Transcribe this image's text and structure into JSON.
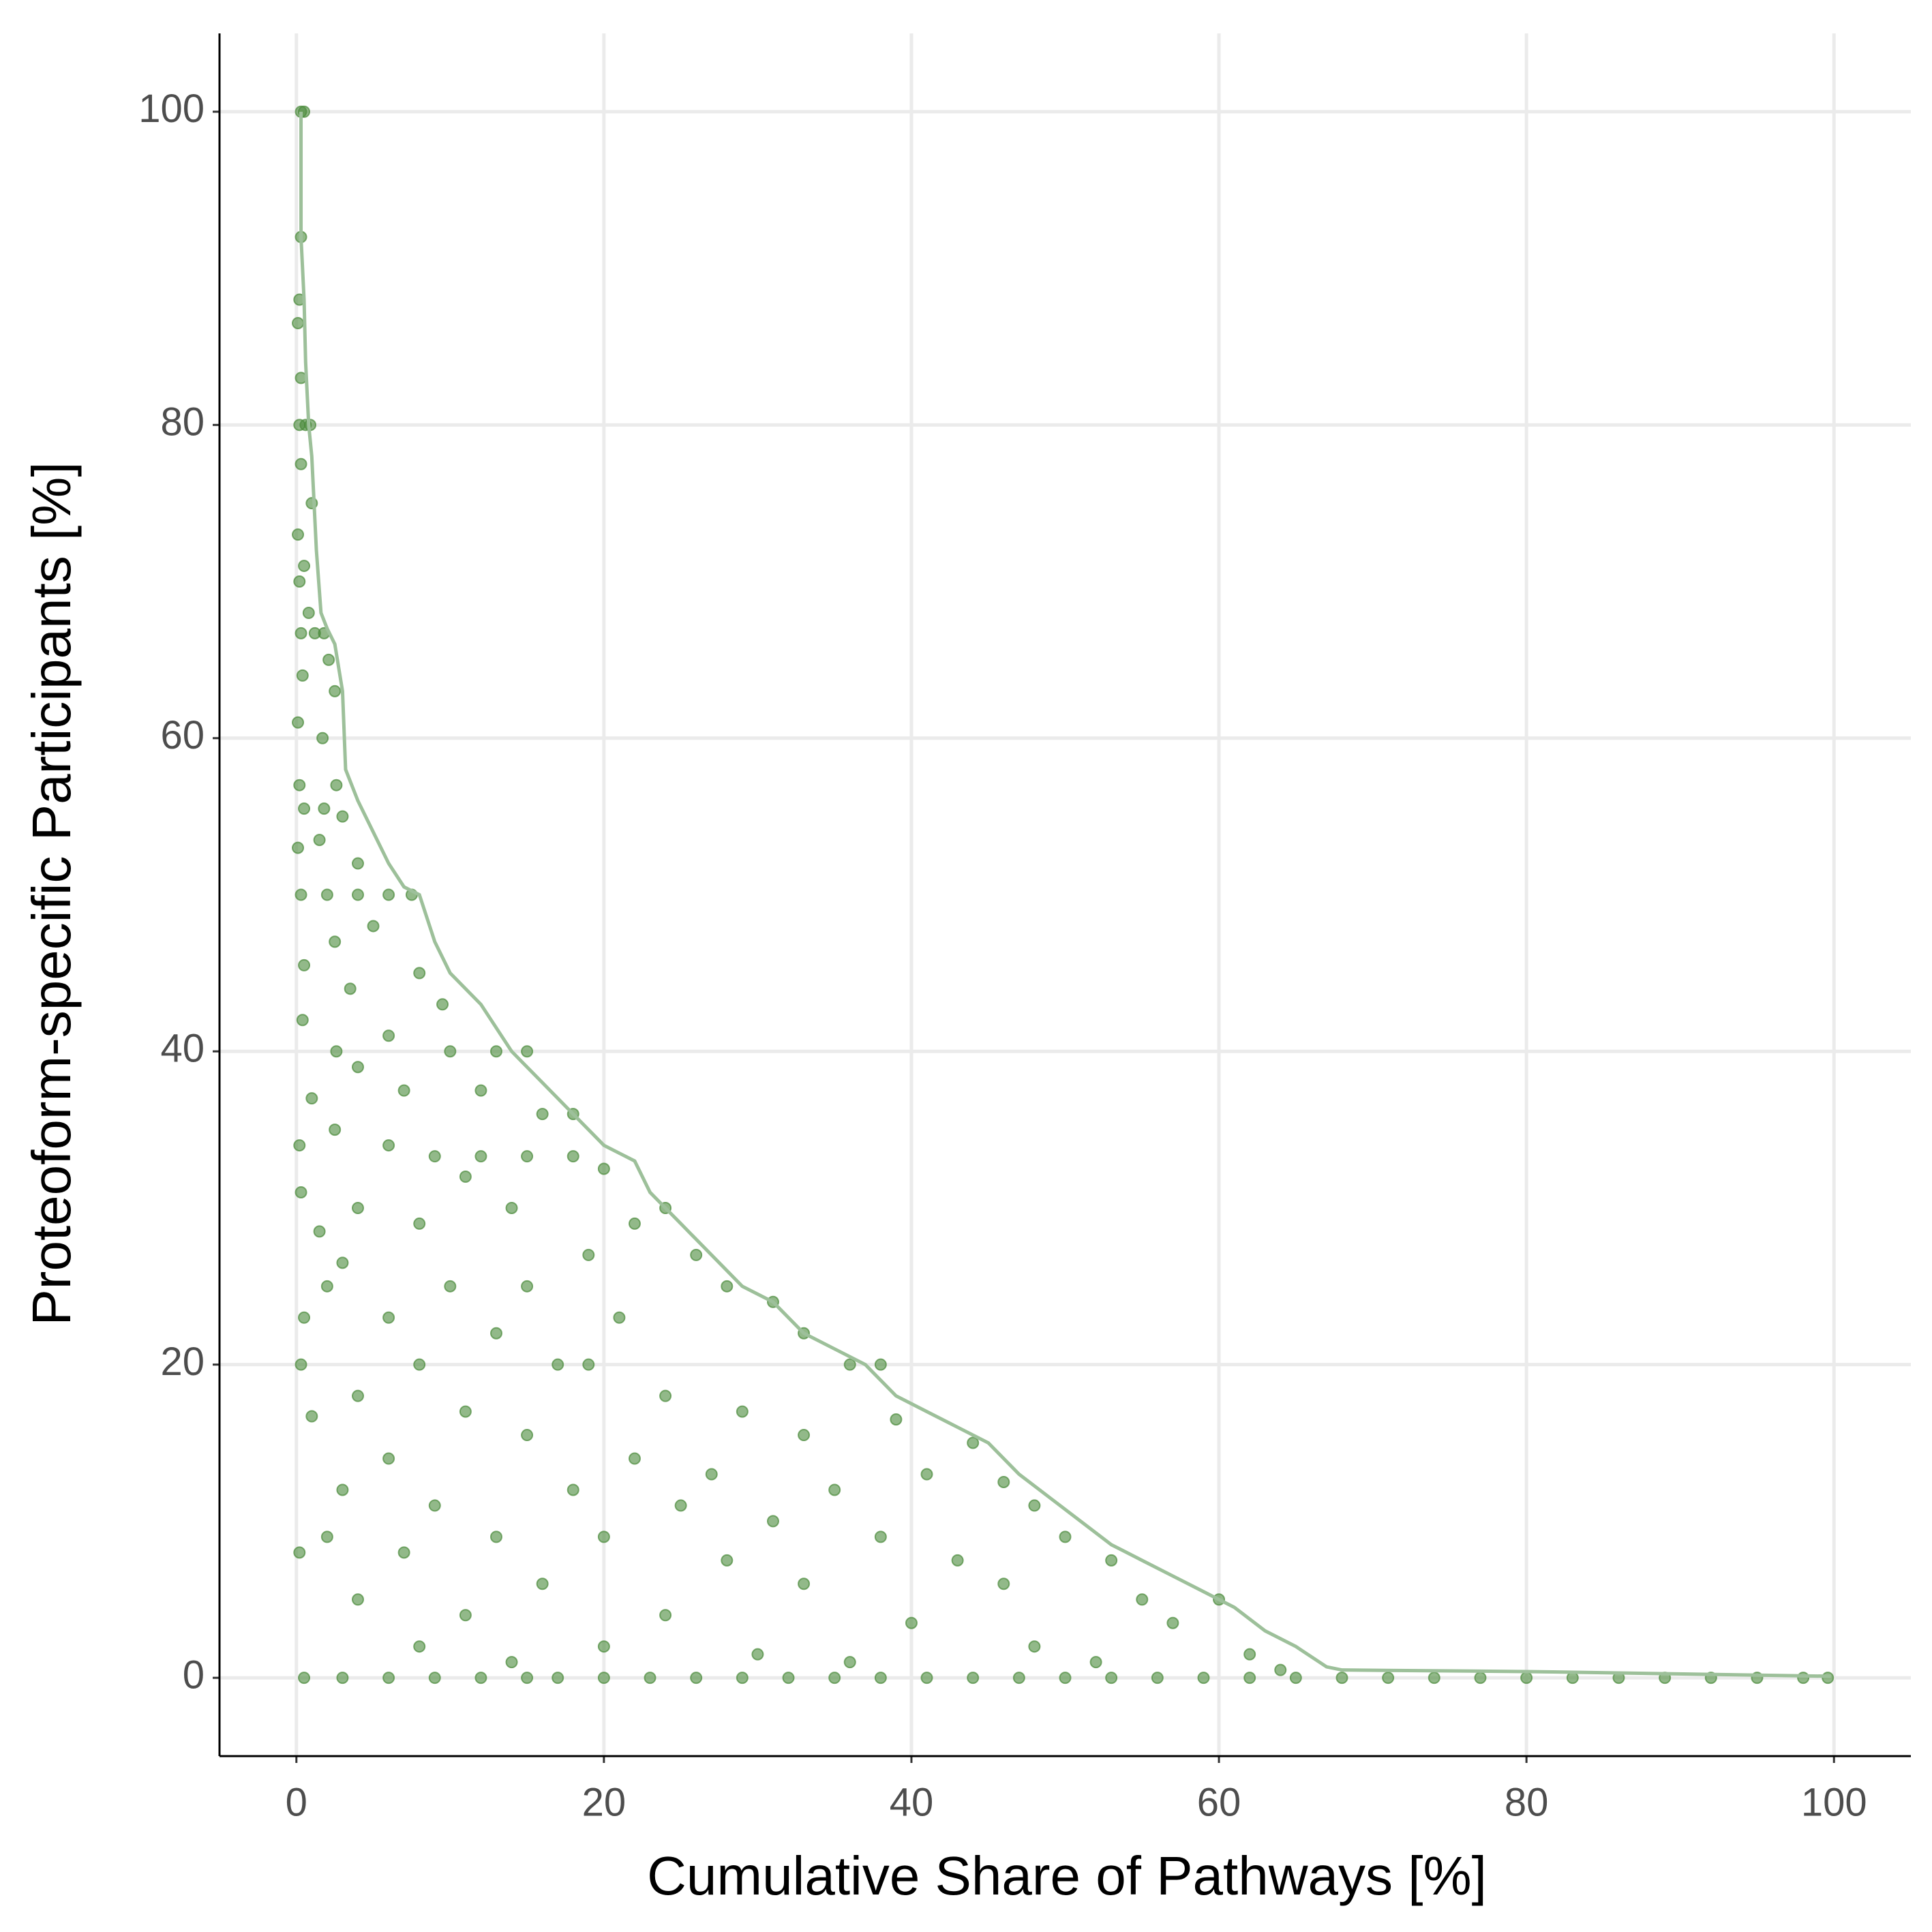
{
  "chart_data": {
    "type": "scatter",
    "x_label": "Cumulative Share of Pathways [%]",
    "y_label": "Proteoform-specific Participants [%]",
    "xlim": [
      -5,
      105
    ],
    "ylim": [
      -5,
      105
    ],
    "xticks": [
      0,
      20,
      40,
      60,
      80,
      100
    ],
    "yticks": [
      0,
      20,
      40,
      60,
      80,
      100
    ],
    "grid": true,
    "point_color": "#4a8a3a",
    "line_color": "#9dc09a",
    "points": {
      "x": [
        0.5,
        3,
        6,
        9,
        12,
        15,
        17,
        20,
        23,
        26,
        29,
        32,
        35,
        38,
        41,
        44,
        47,
        50,
        53,
        56,
        59,
        62,
        65,
        68,
        71,
        74,
        77,
        80,
        83,
        86,
        89,
        92,
        95,
        98,
        99.6,
        0.3,
        0.5,
        0.3,
        0.2,
        0.1,
        0.3,
        0.2,
        0.6,
        0.9,
        0.3,
        1,
        0.1,
        0.5,
        0.2,
        0.8,
        0.3,
        1.2,
        1.8,
        2.1,
        0.4,
        2.5,
        0.1,
        1.7,
        0.2,
        2.6,
        0.5,
        1.8,
        3,
        0.1,
        1.5,
        4,
        0.3,
        2,
        4,
        6,
        7.5,
        5,
        2.5,
        0.5,
        8,
        3.5,
        0.4,
        9.5,
        6,
        2.6,
        10,
        13,
        15,
        4,
        7,
        12,
        1,
        16,
        18,
        2.5,
        6,
        0.2,
        9,
        12,
        15,
        18,
        20,
        11,
        0.3,
        4,
        14,
        8,
        22,
        24,
        1.5,
        19,
        26,
        3,
        10,
        15,
        28,
        31,
        2,
        6,
        21,
        13,
        0.5,
        33,
        17,
        0.3,
        8,
        19,
        36,
        38,
        24,
        4,
        11,
        29,
        39,
        1,
        15,
        33,
        44,
        6,
        22,
        27,
        41,
        3,
        18,
        35,
        46,
        9,
        25,
        31,
        48,
        2,
        13,
        20,
        38,
        50,
        7,
        28,
        43,
        53,
        0.2,
        16,
        33,
        46,
        55,
        4,
        11,
        24,
        40,
        57,
        60,
        8,
        20,
        30,
        48,
        62,
        14,
        36,
        52,
        64
      ],
      "y": [
        0,
        0,
        0,
        0,
        0,
        0,
        0,
        0,
        0,
        0,
        0,
        0,
        0,
        0,
        0,
        0,
        0,
        0,
        0,
        0,
        0,
        0,
        0,
        0,
        0,
        0,
        0,
        0,
        0,
        0,
        0,
        0,
        0,
        0,
        0,
        100,
        100,
        92,
        88,
        86.5,
        83,
        80,
        80,
        80,
        77.5,
        75,
        73,
        71,
        70,
        68,
        66.7,
        66.7,
        66.7,
        65,
        64,
        63,
        61,
        60,
        57,
        57,
        55.5,
        55.5,
        55,
        53,
        53.5,
        52,
        50,
        50,
        50,
        50,
        50,
        48,
        47,
        45.5,
        45,
        44,
        42,
        43,
        41,
        40,
        40,
        40,
        40,
        39,
        37.5,
        37.5,
        37,
        36,
        36,
        35,
        34,
        34,
        33.3,
        33.3,
        33.3,
        33.3,
        32.5,
        32,
        31,
        30,
        30,
        29,
        29,
        30,
        28.5,
        27,
        27,
        26.5,
        25,
        25,
        25,
        24,
        25,
        23,
        23,
        22,
        23,
        22,
        20,
        20,
        20,
        20,
        20,
        20,
        18,
        18,
        17,
        17,
        16.5,
        16.7,
        15.5,
        15.5,
        15,
        14,
        14,
        13,
        13,
        12,
        12,
        12,
        12.5,
        11,
        11,
        10,
        11,
        9,
        9,
        9,
        9,
        9,
        8,
        7.5,
        7.5,
        7.5,
        8,
        6,
        6,
        6,
        5,
        5,
        4,
        4,
        3.5,
        3.5,
        5,
        2,
        2,
        1.5,
        2,
        1.5,
        1,
        1,
        1,
        0.5
      ]
    },
    "envelope": {
      "x": [
        0.3,
        0.3,
        0.5,
        0.6,
        0.8,
        1,
        1.3,
        1.6,
        2,
        2.5,
        3,
        3.2,
        4,
        5,
        6,
        7,
        8,
        9,
        10,
        12,
        14,
        16,
        18,
        20,
        21,
        22,
        23,
        25,
        27,
        29,
        31,
        33,
        35,
        37,
        39,
        41,
        43,
        45,
        47,
        49,
        51,
        53,
        55,
        57,
        59,
        61,
        63,
        65,
        67,
        68,
        80,
        99.8
      ],
      "y": [
        100,
        92,
        88,
        84,
        80,
        78,
        72,
        68,
        67,
        66,
        63,
        58,
        56,
        54,
        52,
        50.5,
        50,
        47,
        45,
        43,
        40,
        38,
        36,
        34,
        33.5,
        33,
        31,
        29,
        27,
        25,
        24,
        22,
        21,
        20,
        18,
        17,
        16,
        15,
        13,
        11.5,
        10,
        8.5,
        7.5,
        6.5,
        5.5,
        4.5,
        3,
        2,
        0.7,
        0.5,
        0.4,
        0.1
      ]
    }
  }
}
